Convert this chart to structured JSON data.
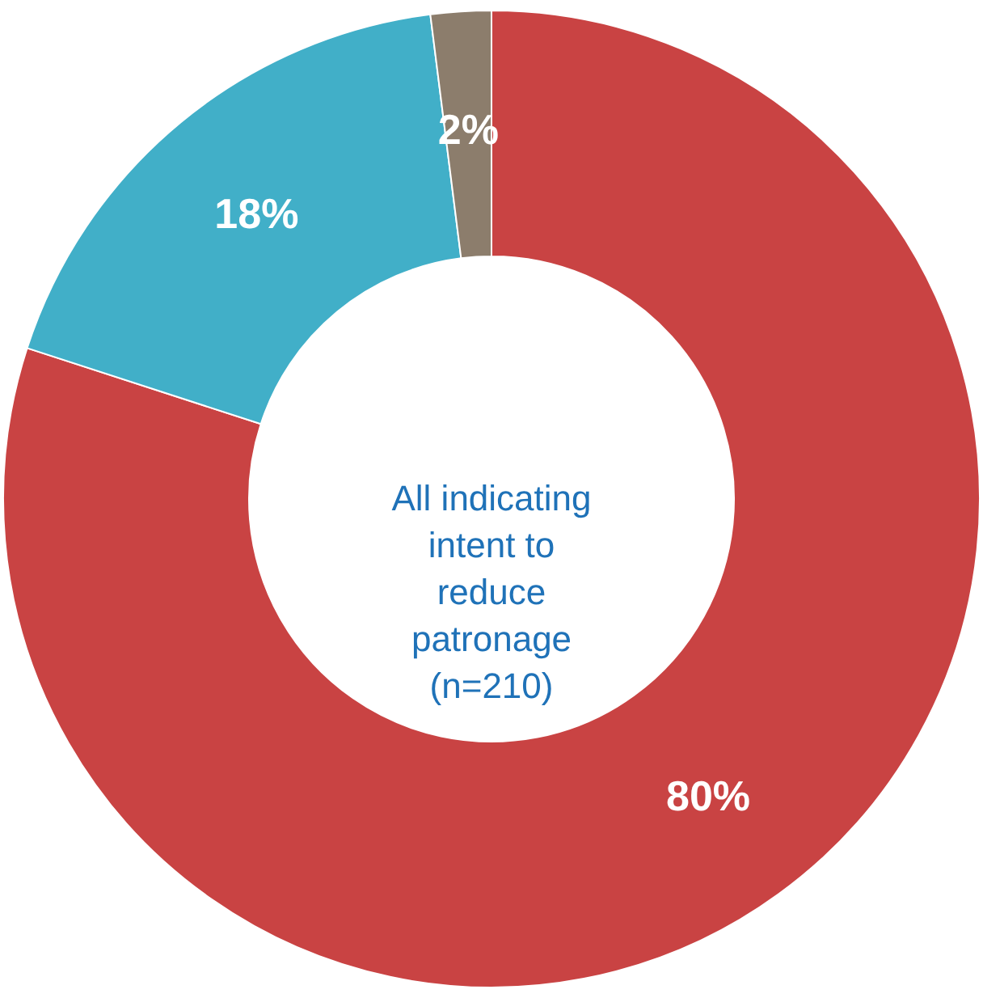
{
  "chart_data": {
    "type": "donut",
    "categories": [
      null,
      null,
      null
    ],
    "values": [
      80,
      18,
      2
    ],
    "colors": [
      "#c94343",
      "#41afc8",
      "#8c7d6c"
    ],
    "value_labels": [
      "80%",
      "18%",
      "2%"
    ],
    "annotations": [
      "All indicating\nintent to\nreduce\npatronage\n (n=210)"
    ]
  }
}
